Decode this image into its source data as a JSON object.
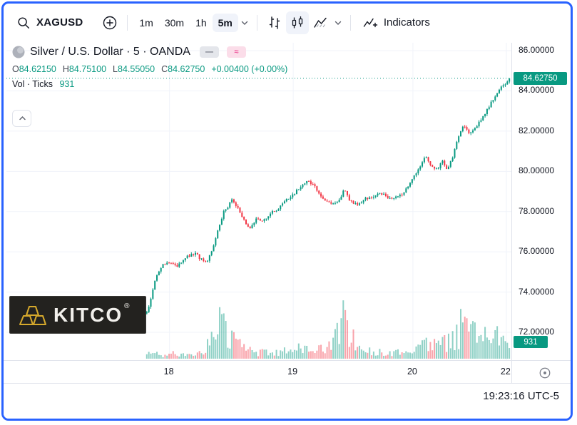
{
  "colors": {
    "accent": "#2962ff",
    "up": "#089981",
    "down": "#f23645",
    "text": "#131722",
    "muted": "#787b86",
    "kitco_bg": "#23221f"
  },
  "toolbar": {
    "symbol": "XAGUSD",
    "timeframes": [
      {
        "label": "1m"
      },
      {
        "label": "30m"
      },
      {
        "label": "1h"
      },
      {
        "label": "5m"
      }
    ],
    "indicators_label": "Indicators"
  },
  "legend": {
    "title": "Silver / U.S. Dollar · 5 · OANDA",
    "pills": [
      {
        "glyph": "—"
      },
      {
        "glyph": "≈"
      }
    ],
    "ohlc": {
      "o_label": "O",
      "o": "84.62150",
      "h_label": "H",
      "h": "84.75100",
      "l_label": "L",
      "l": "84.55050",
      "c_label": "C",
      "c": "84.62750",
      "change": "+0.00400 (+0.00%)"
    },
    "vol_label": "Vol · Ticks",
    "vol_value": "931"
  },
  "price_scale": {
    "labels": [
      "86.00000",
      "84.00000",
      "82.00000",
      "80.00000",
      "78.00000",
      "76.00000",
      "74.00000",
      "72.00000"
    ],
    "current_badge": "84.62750",
    "volume_badge": "931"
  },
  "footer": {
    "clock": "19:23:16 UTC-5"
  },
  "watermark": {
    "brand": "KITCO",
    "reg": "®"
  },
  "chart_data": {
    "type": "candlestick+volume",
    "title": "Silver / U.S. Dollar · 5 · OANDA",
    "symbol": "XAGUSD",
    "interval": "5m",
    "exchange": "OANDA",
    "ohlc_current": {
      "open": 84.6215,
      "high": 84.751,
      "low": 84.5505,
      "close": 84.6275,
      "change": "+0.00400 (+0.00%)"
    },
    "volume_current": 931,
    "y_axis": {
      "range": [
        70.62,
        86.39
      ],
      "ticks": [
        86,
        84,
        82,
        80,
        78,
        76,
        74,
        72
      ]
    },
    "x_axis": {
      "ticks": [
        {
          "label": "18",
          "pos": 0.323
        },
        {
          "label": "19",
          "pos": 0.568
        },
        {
          "label": "20",
          "pos": 0.805
        },
        {
          "label": "22",
          "pos": 0.99
        }
      ]
    },
    "plot_range": [
      0.278,
      0.996
    ],
    "num_bars": 180,
    "seed": 73,
    "price_keypoints": [
      [
        0,
        73.0
      ],
      [
        0.01,
        73.6
      ],
      [
        0.025,
        74.8
      ],
      [
        0.045,
        75.4
      ],
      [
        0.07,
        75.5
      ],
      [
        0.085,
        75.25
      ],
      [
        0.11,
        75.8
      ],
      [
        0.135,
        75.9
      ],
      [
        0.15,
        75.6
      ],
      [
        0.165,
        75.5
      ],
      [
        0.18,
        76.1
      ],
      [
        0.195,
        77.0
      ],
      [
        0.21,
        77.9
      ],
      [
        0.225,
        78.3
      ],
      [
        0.235,
        78.55
      ],
      [
        0.25,
        78.2
      ],
      [
        0.27,
        77.5
      ],
      [
        0.285,
        77.15
      ],
      [
        0.3,
        77.6
      ],
      [
        0.32,
        77.55
      ],
      [
        0.34,
        77.9
      ],
      [
        0.365,
        78.2
      ],
      [
        0.385,
        78.6
      ],
      [
        0.405,
        78.9
      ],
      [
        0.425,
        79.3
      ],
      [
        0.445,
        79.55
      ],
      [
        0.465,
        79.2
      ],
      [
        0.485,
        78.6
      ],
      [
        0.505,
        78.4
      ],
      [
        0.53,
        78.5
      ],
      [
        0.545,
        79.15
      ],
      [
        0.56,
        78.5
      ],
      [
        0.58,
        78.4
      ],
      [
        0.6,
        78.6
      ],
      [
        0.625,
        78.8
      ],
      [
        0.65,
        78.9
      ],
      [
        0.675,
        78.6
      ],
      [
        0.7,
        78.8
      ],
      [
        0.72,
        79.2
      ],
      [
        0.74,
        79.8
      ],
      [
        0.755,
        80.3
      ],
      [
        0.77,
        80.75
      ],
      [
        0.785,
        80.3
      ],
      [
        0.8,
        80.1
      ],
      [
        0.815,
        80.5
      ],
      [
        0.83,
        80.05
      ],
      [
        0.845,
        80.8
      ],
      [
        0.86,
        81.8
      ],
      [
        0.875,
        82.3
      ],
      [
        0.89,
        81.85
      ],
      [
        0.905,
        82.1
      ],
      [
        0.92,
        82.5
      ],
      [
        0.94,
        83.1
      ],
      [
        0.96,
        83.7
      ],
      [
        0.98,
        84.2
      ],
      [
        1,
        84.63
      ]
    ],
    "volume_keypoints": [
      [
        0,
        0.1
      ],
      [
        0.04,
        0.07
      ],
      [
        0.08,
        0.1
      ],
      [
        0.12,
        0.08
      ],
      [
        0.16,
        0.15
      ],
      [
        0.19,
        0.45
      ],
      [
        0.21,
        0.75
      ],
      [
        0.23,
        0.4
      ],
      [
        0.26,
        0.22
      ],
      [
        0.3,
        0.12
      ],
      [
        0.34,
        0.1
      ],
      [
        0.38,
        0.14
      ],
      [
        0.42,
        0.18
      ],
      [
        0.46,
        0.14
      ],
      [
        0.5,
        0.18
      ],
      [
        0.53,
        0.45
      ],
      [
        0.545,
        0.85
      ],
      [
        0.56,
        0.4
      ],
      [
        0.6,
        0.18
      ],
      [
        0.64,
        0.12
      ],
      [
        0.68,
        0.1
      ],
      [
        0.72,
        0.18
      ],
      [
        0.75,
        0.28
      ],
      [
        0.78,
        0.22
      ],
      [
        0.81,
        0.25
      ],
      [
        0.84,
        0.3
      ],
      [
        0.86,
        0.45
      ],
      [
        0.885,
        1.0
      ],
      [
        0.9,
        0.5
      ],
      [
        0.92,
        0.35
      ],
      [
        0.94,
        0.45
      ],
      [
        0.96,
        0.35
      ],
      [
        0.98,
        0.45
      ],
      [
        1,
        0.3
      ]
    ],
    "colors": {
      "up": "#089981",
      "down": "#f23645",
      "vol_up": "rgba(8,153,129,0.45)",
      "vol_down": "rgba(242,54,69,0.45)",
      "grid": "#f0f3fa"
    }
  }
}
